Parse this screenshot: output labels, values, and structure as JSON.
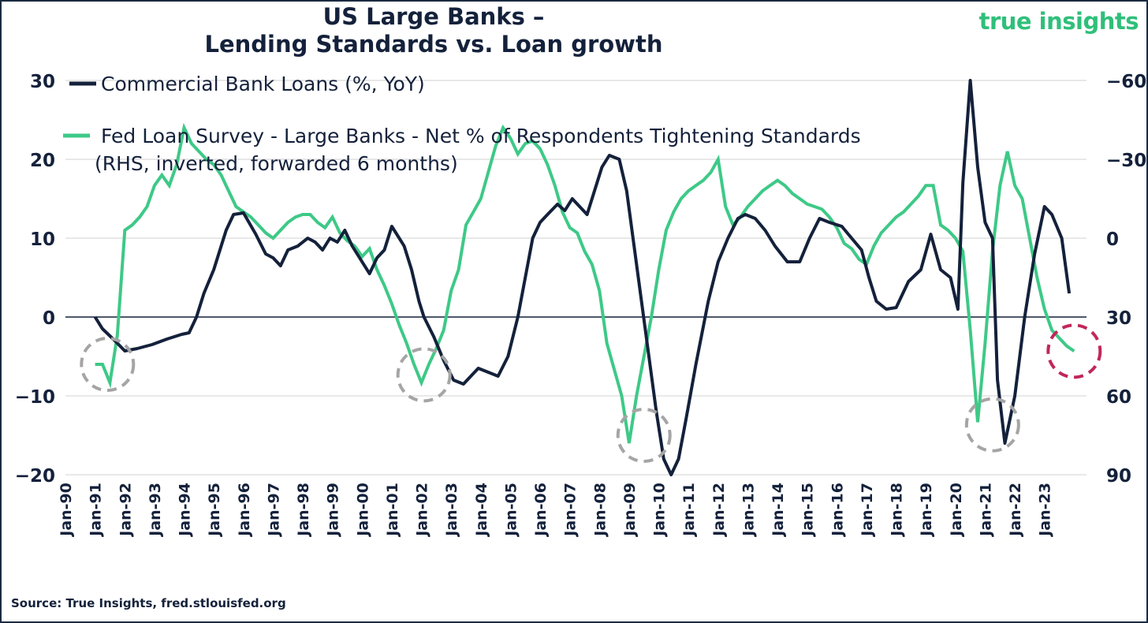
{
  "title_line1": "US Large Banks –",
  "title_line2": "Lending Standards vs. Loan growth",
  "logo": {
    "part1": "true",
    "part2": "insights"
  },
  "source": "Source: True Insights, fred.stlouisfed.org",
  "colors": {
    "loans": "#14213b",
    "survey": "#3ec987",
    "circle_gray": "#a5a5a5",
    "circle_red": "#c0275a",
    "grid": "#d0d0d0",
    "zero": "#14213b"
  },
  "legend": {
    "loans": "Commercial Bank Loans (%, YoY)",
    "survey_line1": "Fed Loan Survey - Large Banks - Net % of Respondents Tightening Standards",
    "survey_line2": "(RHS, inverted, forwarded 6 months)"
  },
  "chart_data": {
    "type": "line",
    "title": "US Large Banks – Lending Standards vs. Loan growth",
    "x_range": [
      "1990-01",
      "2024-06"
    ],
    "x_tick_labels": [
      "Jan-90",
      "Jan-91",
      "Jan-92",
      "Jan-93",
      "Jan-94",
      "Jan-95",
      "Jan-96",
      "Jan-97",
      "Jan-98",
      "Jan-99",
      "Jan-00",
      "Jan-01",
      "Jan-02",
      "Jan-03",
      "Jan-04",
      "Jan-05",
      "Jan-06",
      "Jan-07",
      "Jan-08",
      "Jan-09",
      "Jan-10",
      "Jan-11",
      "Jan-12",
      "Jan-13",
      "Jan-14",
      "Jan-15",
      "Jan-16",
      "Jan-17",
      "Jan-18",
      "Jan-19",
      "Jan-20",
      "Jan-21",
      "Jan-22",
      "Jan-23"
    ],
    "y_left": {
      "ticks": [
        30,
        20,
        10,
        0,
        -10,
        -20
      ],
      "range": [
        -20,
        30
      ]
    },
    "y_right": {
      "ticks": [
        -60,
        -30,
        0,
        30,
        60,
        90
      ],
      "range": [
        -60,
        90
      ],
      "inverted": true
    },
    "grid": true,
    "series": [
      {
        "name": "Commercial Bank Loans (%, YoY)",
        "axis": "left",
        "points": [
          [
            "1991-01",
            0
          ],
          [
            "1991-04",
            -1.5
          ],
          [
            "1991-09",
            -3
          ],
          [
            "1992-01",
            -4.3
          ],
          [
            "1992-06",
            -4
          ],
          [
            "1992-12",
            -3.5
          ],
          [
            "1993-06",
            -2.8
          ],
          [
            "1993-12",
            -2.2
          ],
          [
            "1994-03",
            -2
          ],
          [
            "1994-06",
            0
          ],
          [
            "1994-09",
            3
          ],
          [
            "1995-01",
            6
          ],
          [
            "1995-06",
            11
          ],
          [
            "1995-09",
            13
          ],
          [
            "1996-01",
            13.2
          ],
          [
            "1996-06",
            10.5
          ],
          [
            "1996-10",
            8
          ],
          [
            "1997-01",
            7.5
          ],
          [
            "1997-04",
            6.5
          ],
          [
            "1997-07",
            8.5
          ],
          [
            "1997-11",
            9
          ],
          [
            "1998-03",
            10
          ],
          [
            "1998-06",
            9.5
          ],
          [
            "1998-09",
            8.5
          ],
          [
            "1998-12",
            10
          ],
          [
            "1999-03",
            9.5
          ],
          [
            "1999-06",
            11
          ],
          [
            "1999-09",
            9
          ],
          [
            "1999-12",
            7.5
          ],
          [
            "2000-04",
            5.5
          ],
          [
            "2000-07",
            7.5
          ],
          [
            "2000-10",
            8.5
          ],
          [
            "2001-01",
            11.5
          ],
          [
            "2001-03",
            10.5
          ],
          [
            "2001-06",
            9
          ],
          [
            "2001-09",
            6
          ],
          [
            "2001-12",
            2
          ],
          [
            "2002-02",
            0
          ],
          [
            "2002-06",
            -2.5
          ],
          [
            "2002-10",
            -5.5
          ],
          [
            "2003-02",
            -8
          ],
          [
            "2003-06",
            -8.5
          ],
          [
            "2003-09",
            -7.5
          ],
          [
            "2003-12",
            -6.5
          ],
          [
            "2004-04",
            -7
          ],
          [
            "2004-08",
            -7.5
          ],
          [
            "2004-12",
            -5
          ],
          [
            "2005-04",
            0
          ],
          [
            "2005-07",
            5
          ],
          [
            "2005-10",
            10
          ],
          [
            "2006-01",
            12
          ],
          [
            "2006-04",
            13
          ],
          [
            "2006-08",
            14.3
          ],
          [
            "2006-11",
            13.5
          ],
          [
            "2007-02",
            15
          ],
          [
            "2007-05",
            14
          ],
          [
            "2007-08",
            13
          ],
          [
            "2007-11",
            16
          ],
          [
            "2008-02",
            19
          ],
          [
            "2008-05",
            20.5
          ],
          [
            "2008-09",
            20
          ],
          [
            "2008-12",
            16
          ],
          [
            "2009-03",
            9
          ],
          [
            "2009-06",
            2
          ],
          [
            "2009-09",
            -5
          ],
          [
            "2009-12",
            -12
          ],
          [
            "2010-03",
            -18
          ],
          [
            "2010-06",
            -20
          ],
          [
            "2010-09",
            -18
          ],
          [
            "2010-12",
            -13
          ],
          [
            "2011-04",
            -6
          ],
          [
            "2011-09",
            2
          ],
          [
            "2012-01",
            7
          ],
          [
            "2012-05",
            10
          ],
          [
            "2012-09",
            12.5
          ],
          [
            "2012-12",
            13
          ],
          [
            "2013-04",
            12.5
          ],
          [
            "2013-08",
            11
          ],
          [
            "2013-12",
            9
          ],
          [
            "2014-05",
            7
          ],
          [
            "2014-10",
            7
          ],
          [
            "2015-02",
            10
          ],
          [
            "2015-06",
            12.5
          ],
          [
            "2015-10",
            12
          ],
          [
            "2016-03",
            11.5
          ],
          [
            "2016-07",
            10
          ],
          [
            "2016-11",
            8.5
          ],
          [
            "2017-02",
            5
          ],
          [
            "2017-05",
            2
          ],
          [
            "2017-09",
            1
          ],
          [
            "2018-01",
            1.2
          ],
          [
            "2018-06",
            4.5
          ],
          [
            "2018-11",
            6
          ],
          [
            "2019-03",
            10.5
          ],
          [
            "2019-07",
            6
          ],
          [
            "2019-11",
            5
          ],
          [
            "2020-02",
            1
          ],
          [
            "2020-04",
            17
          ],
          [
            "2020-07",
            30
          ],
          [
            "2020-10",
            19
          ],
          [
            "2021-01",
            12
          ],
          [
            "2021-04",
            10
          ],
          [
            "2021-06",
            -8
          ],
          [
            "2021-09",
            -16
          ],
          [
            "2022-01",
            -10
          ],
          [
            "2022-05",
            0
          ],
          [
            "2022-09",
            8
          ],
          [
            "2023-01",
            14
          ],
          [
            "2023-04",
            13
          ],
          [
            "2023-08",
            10
          ],
          [
            "2023-11",
            3
          ]
        ]
      },
      {
        "name": "Fed Loan Survey - Large Banks - Net % of Respondents Tightening Standards",
        "axis": "right",
        "points": [
          [
            "1991-01",
            48
          ],
          [
            "1991-04",
            48
          ],
          [
            "1991-07",
            55
          ],
          [
            "1991-10",
            37
          ],
          [
            "1992-01",
            -3
          ],
          [
            "1992-04",
            -5
          ],
          [
            "1992-07",
            -8
          ],
          [
            "1992-10",
            -12
          ],
          [
            "1993-01",
            -20
          ],
          [
            "1993-04",
            -24
          ],
          [
            "1993-07",
            -20
          ],
          [
            "1993-10",
            -28
          ],
          [
            "1994-01",
            -42
          ],
          [
            "1994-04",
            -36
          ],
          [
            "1994-07",
            -33
          ],
          [
            "1994-10",
            -30
          ],
          [
            "1995-01",
            -28
          ],
          [
            "1995-04",
            -24
          ],
          [
            "1995-07",
            -18
          ],
          [
            "1995-10",
            -12
          ],
          [
            "1996-01",
            -10
          ],
          [
            "1996-04",
            -8
          ],
          [
            "1996-07",
            -5
          ],
          [
            "1996-10",
            -2
          ],
          [
            "1997-01",
            0
          ],
          [
            "1997-04",
            -3
          ],
          [
            "1997-07",
            -6
          ],
          [
            "1997-10",
            -8
          ],
          [
            "1998-01",
            -9
          ],
          [
            "1998-04",
            -9
          ],
          [
            "1998-07",
            -6
          ],
          [
            "1998-10",
            -4
          ],
          [
            "1999-01",
            -8
          ],
          [
            "1999-04",
            -2
          ],
          [
            "1999-07",
            1
          ],
          [
            "1999-10",
            3
          ],
          [
            "2000-01",
            7
          ],
          [
            "2000-04",
            4
          ],
          [
            "2000-07",
            12
          ],
          [
            "2000-10",
            18
          ],
          [
            "2001-01",
            25
          ],
          [
            "2001-04",
            33
          ],
          [
            "2001-07",
            40
          ],
          [
            "2001-10",
            48
          ],
          [
            "2002-01",
            55
          ],
          [
            "2002-04",
            48
          ],
          [
            "2002-07",
            42
          ],
          [
            "2002-10",
            35
          ],
          [
            "2003-01",
            20
          ],
          [
            "2003-04",
            12
          ],
          [
            "2003-07",
            -5
          ],
          [
            "2003-10",
            -10
          ],
          [
            "2004-01",
            -15
          ],
          [
            "2004-04",
            -25
          ],
          [
            "2004-07",
            -35
          ],
          [
            "2004-10",
            -42
          ],
          [
            "2005-01",
            -38
          ],
          [
            "2005-04",
            -32
          ],
          [
            "2005-07",
            -36
          ],
          [
            "2005-10",
            -37
          ],
          [
            "2006-01",
            -34
          ],
          [
            "2006-04",
            -28
          ],
          [
            "2006-07",
            -20
          ],
          [
            "2006-10",
            -10
          ],
          [
            "2007-01",
            -4
          ],
          [
            "2007-04",
            -2
          ],
          [
            "2007-07",
            5
          ],
          [
            "2007-10",
            10
          ],
          [
            "2008-01",
            20
          ],
          [
            "2008-04",
            40
          ],
          [
            "2008-07",
            50
          ],
          [
            "2008-10",
            60
          ],
          [
            "2009-01",
            78
          ],
          [
            "2009-04",
            60
          ],
          [
            "2009-07",
            45
          ],
          [
            "2009-10",
            30
          ],
          [
            "2010-01",
            12
          ],
          [
            "2010-04",
            -3
          ],
          [
            "2010-07",
            -10
          ],
          [
            "2010-10",
            -15
          ],
          [
            "2011-01",
            -18
          ],
          [
            "2011-04",
            -20
          ],
          [
            "2011-07",
            -22
          ],
          [
            "2011-10",
            -25
          ],
          [
            "2012-01",
            -30
          ],
          [
            "2012-04",
            -12
          ],
          [
            "2012-07",
            -5
          ],
          [
            "2012-10",
            -8
          ],
          [
            "2013-01",
            -12
          ],
          [
            "2013-04",
            -15
          ],
          [
            "2013-07",
            -18
          ],
          [
            "2013-10",
            -20
          ],
          [
            "2014-01",
            -22
          ],
          [
            "2014-04",
            -20
          ],
          [
            "2014-07",
            -17
          ],
          [
            "2014-10",
            -15
          ],
          [
            "2015-01",
            -13
          ],
          [
            "2015-04",
            -12
          ],
          [
            "2015-07",
            -11
          ],
          [
            "2015-10",
            -8
          ],
          [
            "2016-01",
            -4
          ],
          [
            "2016-04",
            2
          ],
          [
            "2016-07",
            4
          ],
          [
            "2016-10",
            8
          ],
          [
            "2017-01",
            10
          ],
          [
            "2017-04",
            3
          ],
          [
            "2017-07",
            -2
          ],
          [
            "2017-10",
            -5
          ],
          [
            "2018-01",
            -8
          ],
          [
            "2018-04",
            -10
          ],
          [
            "2018-07",
            -13
          ],
          [
            "2018-10",
            -16
          ],
          [
            "2019-01",
            -20
          ],
          [
            "2019-04",
            -20
          ],
          [
            "2019-07",
            -5
          ],
          [
            "2019-10",
            -3
          ],
          [
            "2020-01",
            0
          ],
          [
            "2020-04",
            5
          ],
          [
            "2020-07",
            35
          ],
          [
            "2020-10",
            70
          ],
          [
            "2021-01",
            40
          ],
          [
            "2021-04",
            5
          ],
          [
            "2021-07",
            -20
          ],
          [
            "2021-10",
            -33
          ],
          [
            "2022-01",
            -20
          ],
          [
            "2022-04",
            -15
          ],
          [
            "2022-07",
            0
          ],
          [
            "2022-10",
            15
          ],
          [
            "2023-01",
            27
          ],
          [
            "2023-04",
            35
          ],
          [
            "2023-07",
            38
          ],
          [
            "2023-10",
            41
          ],
          [
            "2024-01",
            43
          ]
        ]
      }
    ],
    "annotations": [
      {
        "type": "dashed-circle",
        "date": "1991-06",
        "value_right": 48,
        "color": "gray"
      },
      {
        "type": "dashed-circle",
        "date": "2002-02",
        "value_right": 52,
        "color": "gray"
      },
      {
        "type": "dashed-circle",
        "date": "2009-07",
        "value_right": 75,
        "color": "gray"
      },
      {
        "type": "dashed-circle",
        "date": "2021-04",
        "value_right": 71,
        "color": "gray"
      },
      {
        "type": "dashed-circle",
        "date": "2024-01",
        "value_right": 43,
        "color": "red"
      }
    ]
  }
}
